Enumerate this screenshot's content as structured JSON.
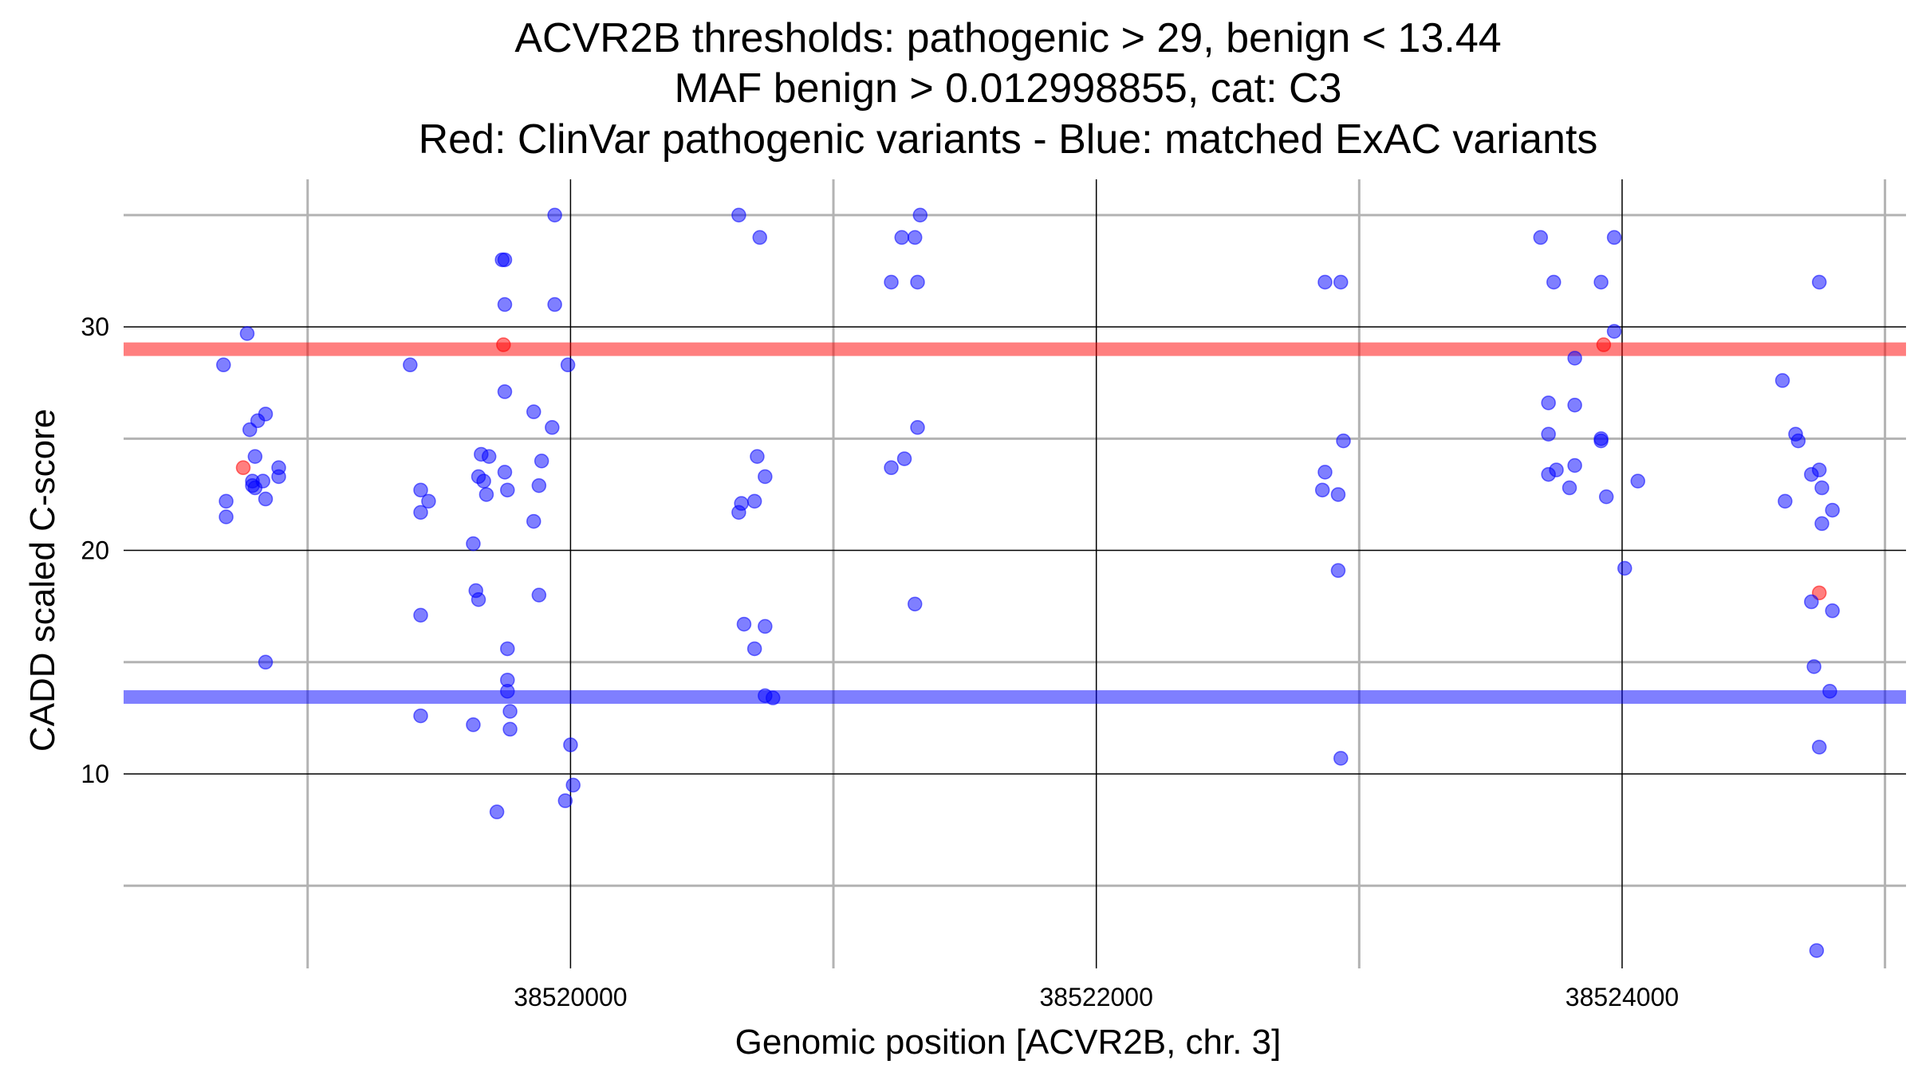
{
  "chart_data": {
    "type": "scatter",
    "title_lines": [
      "ACVR2B thresholds: pathogenic > 29, benign < 13.44",
      "MAF benign > 0.012998855, cat: C3",
      "Red: ClinVar pathogenic variants - Blue: matched ExAC variants"
    ],
    "xlabel": "Genomic position [ACVR2B, chr. 3]",
    "ylabel": "CADD scaled C-score",
    "xlim": [
      38518300,
      38525080
    ],
    "ylim": [
      1.3,
      36.6
    ],
    "x_major_ticks": [
      38520000,
      38522000,
      38524000
    ],
    "x_minor_ticks": [
      38519000,
      38521000,
      38523000,
      38525000
    ],
    "x_tick_labels": [
      "38520000",
      "38522000",
      "38524000"
    ],
    "y_major_ticks": [
      10,
      20,
      30
    ],
    "y_minor_ticks": [
      5,
      15,
      25,
      35
    ],
    "y_tick_labels": [
      "10",
      "20",
      "30"
    ],
    "grid": true,
    "thresholds": [
      {
        "name": "pathogenic",
        "value": 29,
        "color": "#ff0000"
      },
      {
        "name": "benign",
        "value": 13.44,
        "color": "#0000ff"
      }
    ],
    "series": [
      {
        "color": "#ff0000",
        "points": [
          [
            38518755,
            23.7
          ],
          [
            38519745,
            29.2
          ],
          [
            38523930,
            29.2
          ],
          [
            38524750,
            18.1
          ]
        ]
      },
      {
        "color": "#0000ff",
        "points": [
          [
            38518680,
            28.3
          ],
          [
            38518690,
            22.2
          ],
          [
            38518690,
            21.5
          ],
          [
            38518770,
            29.7
          ],
          [
            38518780,
            25.4
          ],
          [
            38518790,
            23.1
          ],
          [
            38518790,
            22.9
          ],
          [
            38518800,
            22.8
          ],
          [
            38518800,
            24.2
          ],
          [
            38518810,
            25.8
          ],
          [
            38518830,
            23.1
          ],
          [
            38518840,
            26.1
          ],
          [
            38518840,
            22.3
          ],
          [
            38518840,
            15.0
          ],
          [
            38518890,
            23.7
          ],
          [
            38518890,
            23.3
          ],
          [
            38519390,
            28.3
          ],
          [
            38519430,
            22.7
          ],
          [
            38519430,
            21.7
          ],
          [
            38519430,
            17.1
          ],
          [
            38519430,
            12.6
          ],
          [
            38519460,
            22.2
          ],
          [
            38519630,
            20.3
          ],
          [
            38519630,
            12.2
          ],
          [
            38519640,
            18.2
          ],
          [
            38519650,
            17.8
          ],
          [
            38519650,
            23.3
          ],
          [
            38519660,
            24.3
          ],
          [
            38519670,
            23.1
          ],
          [
            38519680,
            22.5
          ],
          [
            38519690,
            24.2
          ],
          [
            38519720,
            8.3
          ],
          [
            38519740,
            33.0
          ],
          [
            38519750,
            33.0
          ],
          [
            38519750,
            31.0
          ],
          [
            38519750,
            27.1
          ],
          [
            38519750,
            23.5
          ],
          [
            38519760,
            22.7
          ],
          [
            38519760,
            15.6
          ],
          [
            38519760,
            14.2
          ],
          [
            38519760,
            13.7
          ],
          [
            38519770,
            12.8
          ],
          [
            38519770,
            12.0
          ],
          [
            38519860,
            26.2
          ],
          [
            38519860,
            21.3
          ],
          [
            38519880,
            18.0
          ],
          [
            38519880,
            22.9
          ],
          [
            38519890,
            24.0
          ],
          [
            38519930,
            25.5
          ],
          [
            38519940,
            31.0
          ],
          [
            38519940,
            35.0
          ],
          [
            38519980,
            8.8
          ],
          [
            38519990,
            28.3
          ],
          [
            38520000,
            11.3
          ],
          [
            38520010,
            9.5
          ],
          [
            38520640,
            35.0
          ],
          [
            38520640,
            21.7
          ],
          [
            38520650,
            22.1
          ],
          [
            38520660,
            16.7
          ],
          [
            38520720,
            34.0
          ],
          [
            38520700,
            15.6
          ],
          [
            38520700,
            22.2
          ],
          [
            38520710,
            24.2
          ],
          [
            38520740,
            23.3
          ],
          [
            38520740,
            16.6
          ],
          [
            38520740,
            13.5
          ],
          [
            38520770,
            13.4
          ],
          [
            38521220,
            32.0
          ],
          [
            38521220,
            23.7
          ],
          [
            38521260,
            34.0
          ],
          [
            38521270,
            24.1
          ],
          [
            38521310,
            34.0
          ],
          [
            38521310,
            17.6
          ],
          [
            38521320,
            25.5
          ],
          [
            38521320,
            32.0
          ],
          [
            38521330,
            35.0
          ],
          [
            38522870,
            32.0
          ],
          [
            38522870,
            23.5
          ],
          [
            38522860,
            22.7
          ],
          [
            38522920,
            22.5
          ],
          [
            38522920,
            19.1
          ],
          [
            38522930,
            10.7
          ],
          [
            38522930,
            32.0
          ],
          [
            38522940,
            24.9
          ],
          [
            38523690,
            34.0
          ],
          [
            38523720,
            26.6
          ],
          [
            38523720,
            25.2
          ],
          [
            38523720,
            23.4
          ],
          [
            38523740,
            32.0
          ],
          [
            38523750,
            23.6
          ],
          [
            38523800,
            22.8
          ],
          [
            38523820,
            23.8
          ],
          [
            38523820,
            28.6
          ],
          [
            38523820,
            26.5
          ],
          [
            38523920,
            32.0
          ],
          [
            38523920,
            25.0
          ],
          [
            38523920,
            24.9
          ],
          [
            38523940,
            22.4
          ],
          [
            38523970,
            29.8
          ],
          [
            38523970,
            34.0
          ],
          [
            38524010,
            19.2
          ],
          [
            38524060,
            23.1
          ],
          [
            38524610,
            27.6
          ],
          [
            38524620,
            22.2
          ],
          [
            38524660,
            25.2
          ],
          [
            38524670,
            24.9
          ],
          [
            38524720,
            23.4
          ],
          [
            38524720,
            17.7
          ],
          [
            38524730,
            14.8
          ],
          [
            38524750,
            23.6
          ],
          [
            38524750,
            32.0
          ],
          [
            38524750,
            11.2
          ],
          [
            38524760,
            22.8
          ],
          [
            38524760,
            21.2
          ],
          [
            38524790,
            13.7
          ],
          [
            38524800,
            21.8
          ],
          [
            38524800,
            17.3
          ],
          [
            38524740,
            2.1
          ]
        ]
      }
    ]
  }
}
